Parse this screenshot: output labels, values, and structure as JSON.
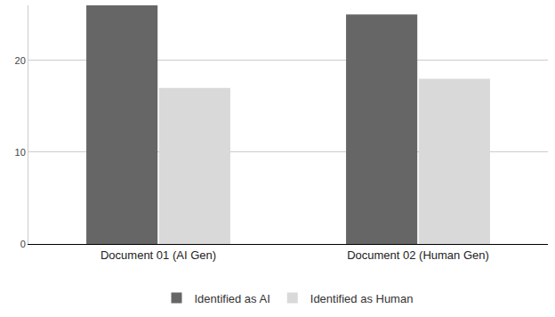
{
  "chart_data": {
    "type": "bar",
    "categories": [
      "Document 01 (AI Gen)",
      "Document 02 (Human Gen)"
    ],
    "series": [
      {
        "name": "Identified as AI",
        "color": "#666666",
        "values": [
          26,
          25
        ]
      },
      {
        "name": "Identified as Human",
        "color": "#d9d9d9",
        "values": [
          17,
          18
        ]
      }
    ],
    "ylim": [
      0,
      26
    ],
    "yticks": [
      0,
      10,
      20
    ],
    "grid": true,
    "legend": "bottom"
  }
}
